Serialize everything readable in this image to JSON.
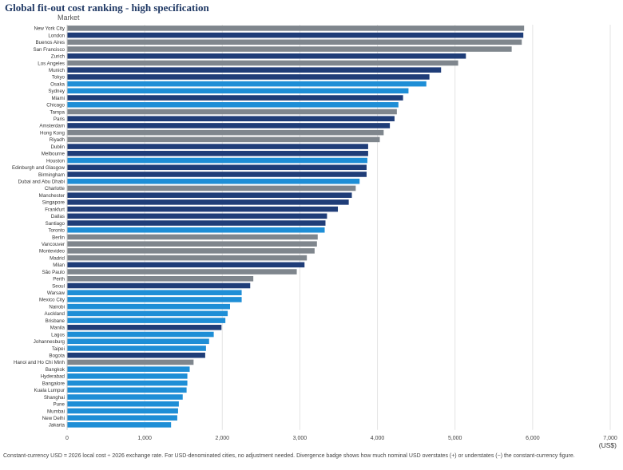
{
  "header": {
    "title": "Global fit-out cost ranking - high specification",
    "axis_title": "Market"
  },
  "footnote": "Constant-currency USD = 2026 local cost ÷ 2026 exchange rate. For USD-denominated cities, no adjustment needed. Divergence badge shows how much nominal USD overstates (+) or understates (−) the constant-currency figure.",
  "colors": {
    "usd": "#7f868d",
    "navy": "#1f3d78",
    "blue": "#1e8ed6",
    "gray": "#7f868d",
    "grid": "#e3e3e3",
    "axis": "#c8c8c8"
  },
  "chart_data": {
    "type": "bar",
    "orientation": "horizontal",
    "title": "Global fit-out cost ranking - high specification",
    "ylabel": "Market",
    "xlabel": "(US$)",
    "xlim": [
      0,
      7000
    ],
    "xticks": [
      0,
      1000,
      2000,
      3000,
      4000,
      5000,
      6000,
      7000
    ],
    "xtick_labels": [
      "0",
      "1,000",
      "2,000",
      "3,000",
      "4,000",
      "5,000",
      "6,000",
      "7,000"
    ],
    "grid": "vertical",
    "categories": [
      "New York City",
      "London",
      "Buenos Aires",
      "San Francisco",
      "Zurich",
      "Los Angeles",
      "Munich",
      "Tokyo",
      "Osaka",
      "Sydney",
      "Miami",
      "Chicago",
      "Tampa",
      "Paris",
      "Amsterdam",
      "Hong Kong",
      "Riyadh",
      "Dublin",
      "Melbourne",
      "Houston",
      "Edinburgh and Glasgow",
      "Birmingham",
      "Dubai and Abu Dhabi",
      "Charlotte",
      "Manchester",
      "Singapore",
      "Frankfurt",
      "Dallas",
      "Santiago",
      "Toronto",
      "Berlin",
      "Vancouver",
      "Montevideo",
      "Madrid",
      "Milan",
      "São Paulo",
      "Perth",
      "Seoul",
      "Warsaw",
      "Mexico City",
      "Nairobi",
      "Auckland",
      "Brisbane",
      "Manila",
      "Lagos",
      "Johannesburg",
      "Taipei",
      "Bogota",
      "Hanoi and Ho Chi Minh",
      "Bangkok",
      "Hyderabad",
      "Bangalore",
      "Kuala Lumpur",
      "Shanghai",
      "Pune",
      "Mumbai",
      "New Delhi",
      "Jakarta"
    ],
    "values": [
      5890,
      5880,
      5860,
      5730,
      5140,
      5040,
      4820,
      4670,
      4630,
      4400,
      4330,
      4270,
      4250,
      4220,
      4160,
      4080,
      4030,
      3880,
      3880,
      3870,
      3860,
      3860,
      3770,
      3720,
      3670,
      3630,
      3490,
      3350,
      3330,
      3320,
      3230,
      3220,
      3190,
      3090,
      3060,
      2960,
      2400,
      2360,
      2250,
      2250,
      2100,
      2070,
      2040,
      1990,
      1890,
      1830,
      1790,
      1780,
      1630,
      1580,
      1550,
      1550,
      1540,
      1490,
      1440,
      1430,
      1420,
      1340
    ],
    "bar_colors": [
      "usd",
      "navy",
      "usd",
      "usd",
      "navy",
      "usd",
      "navy",
      "navy",
      "blue",
      "blue",
      "navy",
      "blue",
      "usd",
      "navy",
      "navy",
      "usd",
      "usd",
      "navy",
      "navy",
      "blue",
      "navy",
      "navy",
      "blue",
      "usd",
      "navy",
      "navy",
      "navy",
      "navy",
      "navy",
      "blue",
      "usd",
      "usd",
      "usd",
      "usd",
      "navy",
      "usd",
      "usd",
      "navy",
      "blue",
      "blue",
      "blue",
      "blue",
      "blue",
      "navy",
      "blue",
      "blue",
      "blue",
      "navy",
      "usd",
      "blue",
      "blue",
      "blue",
      "blue",
      "blue",
      "blue",
      "blue",
      "blue",
      "blue"
    ]
  }
}
